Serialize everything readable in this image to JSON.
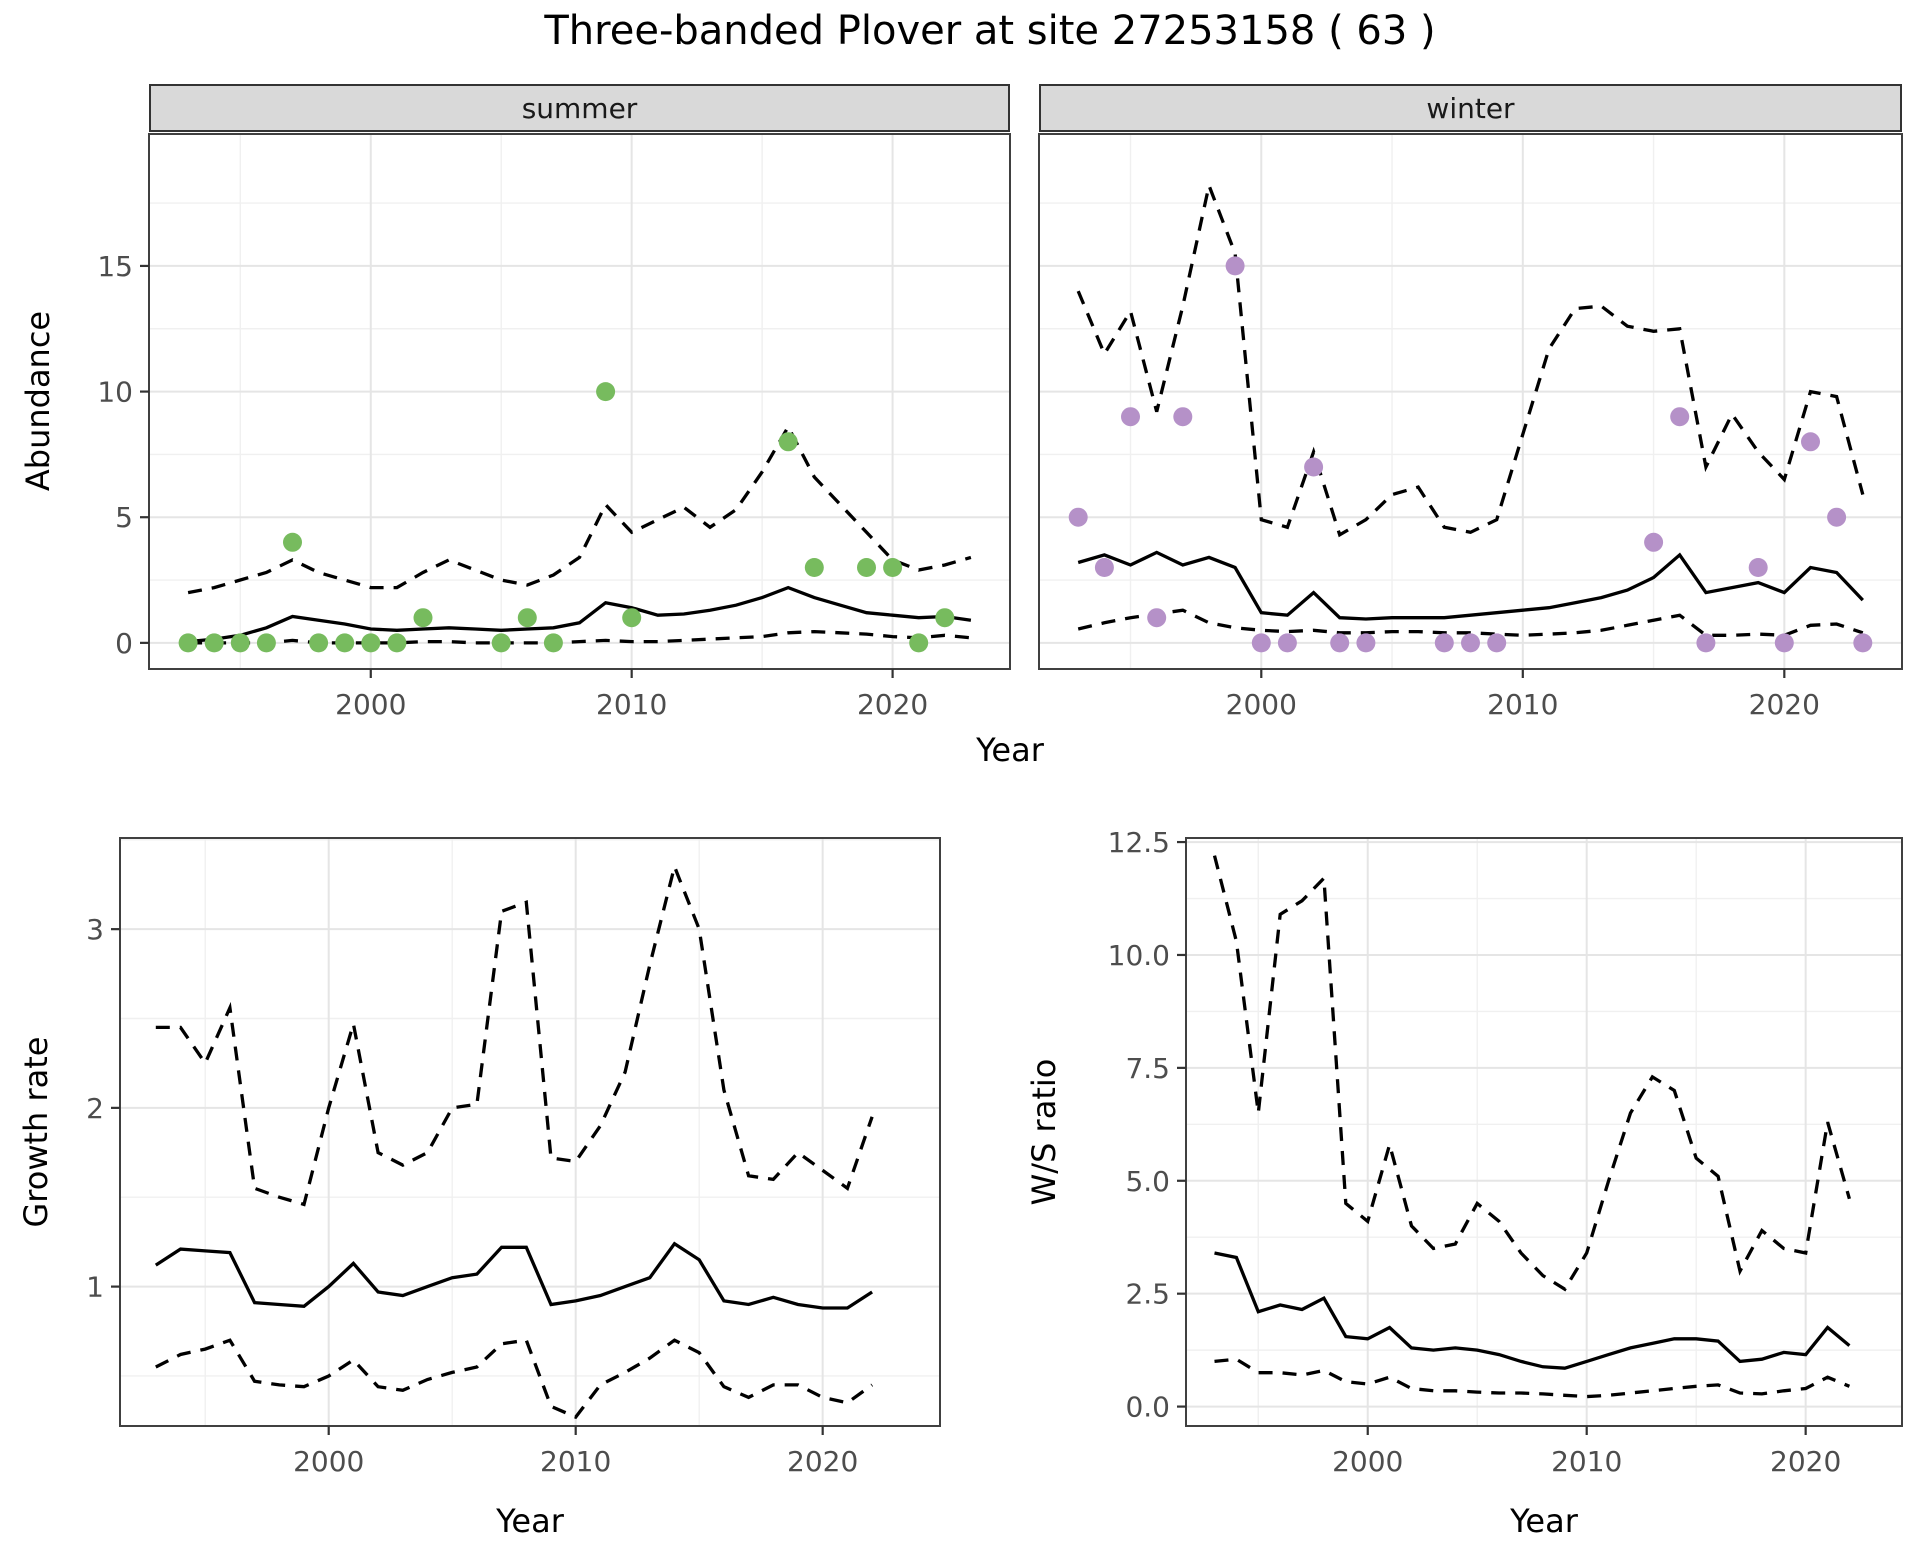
{
  "title": "Three-banded Plover at site 27253158 ( 63 )",
  "shared": {
    "x_axis_label": "Year"
  },
  "colors": {
    "summer_points": "#77BB5E",
    "winter_points": "#B591C8",
    "line": "#000000",
    "grid_major": "#E5E5E5",
    "grid_minor": "#F0F0F0",
    "panel_border": "#404040",
    "strip_background": "#D9D9D9",
    "tick_text": "#4D4D4D"
  },
  "chart_data": [
    {
      "id": "abundance-summer",
      "type": "line",
      "facet_label": "summer",
      "xlabel": "Year",
      "ylabel": "Abundance",
      "xlim": [
        1991.5,
        2024.5
      ],
      "ylim": [
        -1.04,
        20.25
      ],
      "x_ticks": {
        "values": [
          2000,
          2010,
          2020
        ],
        "labels": [
          "2000",
          "2010",
          "2020"
        ],
        "minor": [
          1995,
          2005,
          2015
        ]
      },
      "y_ticks": {
        "values": [
          0,
          5,
          10,
          15
        ],
        "labels": [
          "0",
          "5",
          "10",
          "15"
        ],
        "minor": [
          2.5,
          7.5,
          12.5,
          17.5
        ]
      },
      "years": [
        1993,
        1994,
        1995,
        1996,
        1997,
        1998,
        1999,
        2000,
        2001,
        2002,
        2003,
        2004,
        2005,
        2006,
        2007,
        2008,
        2009,
        2010,
        2011,
        2012,
        2013,
        2014,
        2015,
        2016,
        2017,
        2018,
        2019,
        2020,
        2021,
        2022,
        2023
      ],
      "series": [
        {
          "name": "median",
          "style": "solid",
          "values": [
            0.05,
            0.15,
            0.3,
            0.6,
            1.05,
            0.9,
            0.75,
            0.55,
            0.5,
            0.55,
            0.6,
            0.55,
            0.5,
            0.55,
            0.6,
            0.8,
            1.6,
            1.4,
            1.1,
            1.15,
            1.3,
            1.5,
            1.8,
            2.2,
            1.8,
            1.5,
            1.2,
            1.1,
            1.0,
            1.05,
            0.9
          ]
        },
        {
          "name": "ci_upper",
          "style": "dashed",
          "values": [
            2.0,
            2.2,
            2.5,
            2.8,
            3.3,
            2.8,
            2.5,
            2.2,
            2.2,
            2.8,
            3.3,
            2.9,
            2.5,
            2.3,
            2.7,
            3.4,
            5.5,
            4.4,
            4.9,
            5.4,
            4.6,
            5.3,
            6.8,
            8.6,
            6.6,
            5.5,
            4.4,
            3.3,
            2.9,
            3.1,
            3.4
          ]
        },
        {
          "name": "ci_lower",
          "style": "dashed",
          "values": [
            0,
            0,
            0,
            0,
            0.1,
            0,
            0,
            0,
            0,
            0.05,
            0.05,
            0,
            0,
            0,
            0,
            0.05,
            0.1,
            0.05,
            0.05,
            0.1,
            0.15,
            0.2,
            0.25,
            0.4,
            0.45,
            0.4,
            0.35,
            0.25,
            0.2,
            0.3,
            0.2
          ]
        }
      ],
      "points": {
        "name": "observed-summer-counts",
        "color": "#77BB5E",
        "data": [
          [
            1993,
            0
          ],
          [
            1994,
            0
          ],
          [
            1995,
            0
          ],
          [
            1996,
            0
          ],
          [
            1997,
            4
          ],
          [
            1998,
            0
          ],
          [
            1999,
            0
          ],
          [
            2000,
            0
          ],
          [
            2001,
            0
          ],
          [
            2002,
            1
          ],
          [
            2005,
            0
          ],
          [
            2006,
            1
          ],
          [
            2007,
            0
          ],
          [
            2009,
            10
          ],
          [
            2010,
            1
          ],
          [
            2016,
            8
          ],
          [
            2017,
            3
          ],
          [
            2019,
            3
          ],
          [
            2020,
            3
          ],
          [
            2021,
            0
          ],
          [
            2022,
            1
          ]
        ]
      }
    },
    {
      "id": "abundance-winter",
      "type": "line",
      "facet_label": "winter",
      "xlabel": "Year",
      "ylabel": "Abundance",
      "xlim": [
        1991.5,
        2024.5
      ],
      "ylim": [
        -1.04,
        20.25
      ],
      "x_ticks": {
        "values": [
          2000,
          2010,
          2020
        ],
        "labels": [
          "2000",
          "2010",
          "2020"
        ],
        "minor": [
          1995,
          2005,
          2015
        ]
      },
      "y_ticks": {
        "values": [
          0,
          5,
          10,
          15
        ],
        "labels": [
          "0",
          "5",
          "10",
          "15"
        ],
        "minor": [
          2.5,
          7.5,
          12.5,
          17.5
        ]
      },
      "years": [
        1993,
        1994,
        1995,
        1996,
        1997,
        1998,
        1999,
        2000,
        2001,
        2002,
        2003,
        2004,
        2005,
        2006,
        2007,
        2008,
        2009,
        2010,
        2011,
        2012,
        2013,
        2014,
        2015,
        2016,
        2017,
        2018,
        2019,
        2020,
        2021,
        2022,
        2023
      ],
      "series": [
        {
          "name": "median",
          "style": "solid",
          "values": [
            3.2,
            3.5,
            3.1,
            3.6,
            3.1,
            3.4,
            3.0,
            1.2,
            1.1,
            2.0,
            1.0,
            0.95,
            1.0,
            1.0,
            1.0,
            1.1,
            1.2,
            1.3,
            1.4,
            1.6,
            1.8,
            2.1,
            2.6,
            3.5,
            2.0,
            2.2,
            2.4,
            2.0,
            3.0,
            2.8,
            1.7
          ]
        },
        {
          "name": "ci_upper",
          "style": "dashed",
          "values": [
            14.0,
            11.5,
            13.2,
            9.2,
            13.4,
            18.2,
            15.5,
            4.9,
            4.6,
            7.6,
            4.3,
            4.9,
            5.9,
            6.2,
            4.6,
            4.4,
            4.9,
            8.3,
            11.7,
            13.3,
            13.4,
            12.6,
            12.4,
            12.5,
            7.0,
            9.1,
            7.6,
            6.5,
            10.0,
            9.8,
            5.9
          ]
        },
        {
          "name": "ci_lower",
          "style": "dashed",
          "values": [
            0.55,
            0.8,
            1.0,
            1.15,
            1.3,
            0.8,
            0.6,
            0.5,
            0.45,
            0.5,
            0.4,
            0.4,
            0.45,
            0.45,
            0.4,
            0.4,
            0.35,
            0.3,
            0.35,
            0.4,
            0.5,
            0.7,
            0.9,
            1.1,
            0.3,
            0.3,
            0.35,
            0.3,
            0.7,
            0.75,
            0.4
          ]
        }
      ],
      "points": {
        "name": "observed-winter-counts",
        "color": "#B591C8",
        "data": [
          [
            1993,
            5
          ],
          [
            1994,
            3
          ],
          [
            1995,
            9
          ],
          [
            1996,
            1
          ],
          [
            1997,
            9
          ],
          [
            1999,
            15
          ],
          [
            2000,
            0
          ],
          [
            2001,
            0
          ],
          [
            2002,
            7
          ],
          [
            2003,
            0
          ],
          [
            2004,
            0
          ],
          [
            2007,
            0
          ],
          [
            2008,
            0
          ],
          [
            2009,
            0
          ],
          [
            2015,
            4
          ],
          [
            2016,
            9
          ],
          [
            2017,
            0
          ],
          [
            2019,
            3
          ],
          [
            2020,
            0
          ],
          [
            2021,
            8
          ],
          [
            2022,
            5
          ],
          [
            2023,
            0
          ]
        ]
      }
    },
    {
      "id": "growth-rate",
      "type": "line",
      "facet_label": "",
      "xlabel": "Year",
      "ylabel": "Growth rate",
      "xlim": [
        1991.55,
        2024.75
      ],
      "ylim": [
        0.22,
        3.51
      ],
      "x_ticks": {
        "values": [
          2000,
          2010,
          2020
        ],
        "labels": [
          "2000",
          "2010",
          "2020"
        ],
        "minor": [
          1995,
          2005,
          2015
        ]
      },
      "y_ticks": {
        "values": [
          1,
          2,
          3
        ],
        "labels": [
          "1",
          "2",
          "3"
        ],
        "minor": [
          0.5,
          1.5,
          2.5,
          3.5
        ]
      },
      "years": [
        1993,
        1994,
        1995,
        1996,
        1997,
        1998,
        1999,
        2000,
        2001,
        2002,
        2003,
        2004,
        2005,
        2006,
        2007,
        2008,
        2009,
        2010,
        2011,
        2012,
        2013,
        2014,
        2015,
        2016,
        2017,
        2018,
        2019,
        2020,
        2021,
        2022
      ],
      "series": [
        {
          "name": "median",
          "style": "solid",
          "values": [
            1.12,
            1.21,
            1.2,
            1.19,
            0.91,
            0.9,
            0.89,
            1.0,
            1.13,
            0.97,
            0.95,
            1.0,
            1.05,
            1.07,
            1.22,
            1.22,
            0.9,
            0.92,
            0.95,
            1.0,
            1.05,
            1.24,
            1.15,
            0.92,
            0.9,
            0.94,
            0.9,
            0.88,
            0.88,
            0.97
          ]
        },
        {
          "name": "ci_upper",
          "style": "dashed",
          "values": [
            2.45,
            2.45,
            2.25,
            2.56,
            1.55,
            1.5,
            1.46,
            2.0,
            2.47,
            1.75,
            1.68,
            1.75,
            2.0,
            2.02,
            3.1,
            3.15,
            1.72,
            1.7,
            1.9,
            2.2,
            2.8,
            3.35,
            3.0,
            2.1,
            1.62,
            1.6,
            1.75,
            1.65,
            1.55,
            1.95
          ]
        },
        {
          "name": "ci_lower",
          "style": "dashed",
          "values": [
            0.55,
            0.62,
            0.65,
            0.7,
            0.47,
            0.45,
            0.44,
            0.5,
            0.59,
            0.44,
            0.42,
            0.48,
            0.52,
            0.55,
            0.68,
            0.7,
            0.33,
            0.27,
            0.45,
            0.52,
            0.6,
            0.7,
            0.63,
            0.44,
            0.38,
            0.45,
            0.45,
            0.38,
            0.35,
            0.45
          ]
        }
      ],
      "points": null
    },
    {
      "id": "ws-ratio",
      "type": "line",
      "facet_label": "",
      "xlabel": "Year",
      "ylabel": "W/S ratio",
      "xlim": [
        1991.7,
        2024.4
      ],
      "ylim": [
        -0.43,
        12.59
      ],
      "x_ticks": {
        "values": [
          2000,
          2010,
          2020
        ],
        "labels": [
          "2000",
          "2010",
          "2020"
        ],
        "minor": [
          1995,
          2005,
          2015
        ]
      },
      "y_ticks": {
        "values": [
          0,
          2.5,
          5,
          7.5,
          10,
          12.5
        ],
        "labels": [
          "0.0",
          "2.5",
          "5.0",
          "7.5",
          "10.0",
          "12.5"
        ],
        "minor": [
          1.25,
          3.75,
          6.25,
          8.75,
          11.25
        ]
      },
      "years": [
        1993,
        1994,
        1995,
        1996,
        1997,
        1998,
        1999,
        2000,
        2001,
        2002,
        2003,
        2004,
        2005,
        2006,
        2007,
        2008,
        2009,
        2010,
        2011,
        2012,
        2013,
        2014,
        2015,
        2016,
        2017,
        2018,
        2019,
        2020,
        2021,
        2022
      ],
      "series": [
        {
          "name": "median",
          "style": "solid",
          "values": [
            3.4,
            3.3,
            2.1,
            2.25,
            2.15,
            2.4,
            1.55,
            1.5,
            1.75,
            1.3,
            1.25,
            1.3,
            1.25,
            1.15,
            1.0,
            0.88,
            0.85,
            1.0,
            1.15,
            1.3,
            1.4,
            1.5,
            1.5,
            1.45,
            1.0,
            1.05,
            1.2,
            1.15,
            1.75,
            1.35
          ]
        },
        {
          "name": "ci_upper",
          "style": "dashed",
          "values": [
            12.2,
            10.3,
            6.5,
            10.9,
            11.2,
            11.7,
            4.5,
            4.1,
            5.8,
            4.0,
            3.5,
            3.6,
            4.5,
            4.1,
            3.4,
            2.9,
            2.6,
            3.4,
            5.0,
            6.5,
            7.3,
            7.0,
            5.5,
            5.1,
            3.0,
            3.9,
            3.5,
            3.4,
            6.3,
            4.6
          ]
        },
        {
          "name": "ci_lower",
          "style": "dashed",
          "values": [
            1.0,
            1.05,
            0.75,
            0.75,
            0.7,
            0.8,
            0.55,
            0.5,
            0.65,
            0.4,
            0.35,
            0.35,
            0.32,
            0.3,
            0.3,
            0.28,
            0.25,
            0.22,
            0.25,
            0.3,
            0.35,
            0.4,
            0.45,
            0.48,
            0.3,
            0.28,
            0.35,
            0.4,
            0.65,
            0.45
          ]
        }
      ],
      "points": null
    }
  ]
}
